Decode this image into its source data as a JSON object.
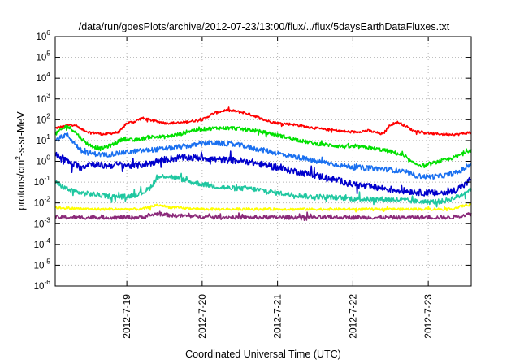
{
  "chart_data": {
    "type": "line",
    "title": "/data/run/goesPlots/archive/2012-07-23/13:00/flux/../flux/5daysEarthDataFluxes.txt",
    "xlabel": "Coordinated Universal Time (UTC)",
    "ylabel": "protons/cm2-s-sr-MeV",
    "y_scale": "log",
    "ylim": [
      1e-06,
      1000000.0
    ],
    "y_ticks": [
      {
        "exp": "-6"
      },
      {
        "exp": "-5"
      },
      {
        "exp": "-4"
      },
      {
        "exp": "-3"
      },
      {
        "exp": "-2"
      },
      {
        "exp": "-1"
      },
      {
        "exp": "0"
      },
      {
        "exp": "1"
      },
      {
        "exp": "2"
      },
      {
        "exp": "3"
      },
      {
        "exp": "4"
      },
      {
        "exp": "5"
      },
      {
        "exp": "6"
      }
    ],
    "x_ticks": [
      "2012-7-19",
      "2012-7-20",
      "2012-7-21",
      "2012-7-22",
      "2012-7-23"
    ],
    "xlim_days": [
      -0.95,
      4.57
    ],
    "grid": true,
    "series": [
      {
        "color": "#ff0000",
        "noise": 0.06,
        "points": [
          [
            -0.95,
            40
          ],
          [
            -0.8,
            50
          ],
          [
            -0.7,
            60
          ],
          [
            -0.6,
            35
          ],
          [
            -0.5,
            25
          ],
          [
            -0.3,
            20
          ],
          [
            -0.1,
            25
          ],
          [
            0,
            70
          ],
          [
            0.1,
            80
          ],
          [
            0.2,
            120
          ],
          [
            0.35,
            90
          ],
          [
            0.5,
            70
          ],
          [
            0.7,
            70
          ],
          [
            0.9,
            90
          ],
          [
            1.0,
            100
          ],
          [
            1.15,
            200
          ],
          [
            1.3,
            280
          ],
          [
            1.4,
            270
          ],
          [
            1.55,
            220
          ],
          [
            1.7,
            150
          ],
          [
            1.85,
            90
          ],
          [
            2.0,
            70
          ],
          [
            2.2,
            60
          ],
          [
            2.4,
            45
          ],
          [
            2.6,
            35
          ],
          [
            2.8,
            30
          ],
          [
            3.0,
            25
          ],
          [
            3.2,
            30
          ],
          [
            3.4,
            20
          ],
          [
            3.5,
            60
          ],
          [
            3.6,
            75
          ],
          [
            3.7,
            50
          ],
          [
            3.8,
            30
          ],
          [
            4.0,
            22
          ],
          [
            4.2,
            20
          ],
          [
            4.4,
            20
          ],
          [
            4.57,
            25
          ]
        ]
      },
      {
        "color": "#00e000",
        "noise": 0.09,
        "points": [
          [
            -0.95,
            20
          ],
          [
            -0.8,
            50
          ],
          [
            -0.7,
            30
          ],
          [
            -0.6,
            12
          ],
          [
            -0.5,
            6
          ],
          [
            -0.35,
            4
          ],
          [
            -0.2,
            6
          ],
          [
            -0.05,
            12
          ],
          [
            0.1,
            10
          ],
          [
            0.3,
            15
          ],
          [
            0.5,
            15
          ],
          [
            0.7,
            20
          ],
          [
            0.85,
            30
          ],
          [
            1.0,
            35
          ],
          [
            1.2,
            40
          ],
          [
            1.4,
            40
          ],
          [
            1.55,
            35
          ],
          [
            1.7,
            30
          ],
          [
            1.9,
            22
          ],
          [
            2.1,
            15
          ],
          [
            2.3,
            10
          ],
          [
            2.5,
            7
          ],
          [
            2.7,
            6
          ],
          [
            2.9,
            5
          ],
          [
            3.1,
            5
          ],
          [
            3.3,
            4
          ],
          [
            3.5,
            3
          ],
          [
            3.65,
            2
          ],
          [
            3.8,
            0.8
          ],
          [
            3.95,
            0.6
          ],
          [
            4.1,
            0.9
          ],
          [
            4.25,
            1.2
          ],
          [
            4.4,
            1.8
          ],
          [
            4.5,
            3
          ],
          [
            4.57,
            3.5
          ]
        ]
      },
      {
        "color": "#1a70f0",
        "noise": 0.12,
        "points": [
          [
            -0.95,
            10
          ],
          [
            -0.8,
            20
          ],
          [
            -0.7,
            8
          ],
          [
            -0.6,
            3
          ],
          [
            -0.5,
            2.5
          ],
          [
            -0.3,
            2
          ],
          [
            -0.1,
            2.5
          ],
          [
            0.1,
            3
          ],
          [
            0.3,
            3.5
          ],
          [
            0.5,
            4
          ],
          [
            0.7,
            5
          ],
          [
            0.9,
            6
          ],
          [
            1.1,
            8
          ],
          [
            1.3,
            7
          ],
          [
            1.5,
            6
          ],
          [
            1.7,
            4
          ],
          [
            1.9,
            3
          ],
          [
            2.1,
            2
          ],
          [
            2.3,
            1.5
          ],
          [
            2.5,
            1
          ],
          [
            2.7,
            0.8
          ],
          [
            2.9,
            0.6
          ],
          [
            3.1,
            0.5
          ],
          [
            3.3,
            0.45
          ],
          [
            3.5,
            0.4
          ],
          [
            3.7,
            0.3
          ],
          [
            3.85,
            0.2
          ],
          [
            4.0,
            0.18
          ],
          [
            4.2,
            0.2
          ],
          [
            4.4,
            0.3
          ],
          [
            4.5,
            0.5
          ],
          [
            4.57,
            0.8
          ]
        ]
      },
      {
        "color": "#0000cc",
        "noise": 0.16,
        "points": [
          [
            -0.95,
            2
          ],
          [
            -0.85,
            1.5
          ],
          [
            -0.75,
            0.8
          ],
          [
            -0.6,
            0.5
          ],
          [
            -0.5,
            0.8
          ],
          [
            -0.3,
            0.6
          ],
          [
            -0.1,
            0.7
          ],
          [
            0.1,
            0.6
          ],
          [
            0.3,
            0.8
          ],
          [
            0.5,
            1.2
          ],
          [
            0.7,
            1.5
          ],
          [
            0.85,
            1.5
          ],
          [
            1.0,
            1.5
          ],
          [
            1.2,
            1.2
          ],
          [
            1.4,
            1.1
          ],
          [
            1.6,
            1
          ],
          [
            1.8,
            0.7
          ],
          [
            2.0,
            0.5
          ],
          [
            2.2,
            0.35
          ],
          [
            2.4,
            0.25
          ],
          [
            2.6,
            0.18
          ],
          [
            2.8,
            0.12
          ],
          [
            3.0,
            0.08
          ],
          [
            3.2,
            0.06
          ],
          [
            3.4,
            0.05
          ],
          [
            3.6,
            0.04
          ],
          [
            3.8,
            0.035
          ],
          [
            4.0,
            0.03
          ],
          [
            4.2,
            0.03
          ],
          [
            4.35,
            0.04
          ],
          [
            4.5,
            0.08
          ],
          [
            4.57,
            0.15
          ]
        ]
      },
      {
        "color": "#1fc7a0",
        "noise": 0.12,
        "points": [
          [
            -0.95,
            0.1
          ],
          [
            -0.85,
            0.06
          ],
          [
            -0.75,
            0.04
          ],
          [
            -0.6,
            0.03
          ],
          [
            -0.4,
            0.025
          ],
          [
            -0.2,
            0.02
          ],
          [
            0,
            0.02
          ],
          [
            0.2,
            0.03
          ],
          [
            0.3,
            0.05
          ],
          [
            0.4,
            0.15
          ],
          [
            0.5,
            0.2
          ],
          [
            0.6,
            0.18
          ],
          [
            0.7,
            0.15
          ],
          [
            0.85,
            0.1
          ],
          [
            1.0,
            0.08
          ],
          [
            1.2,
            0.06
          ],
          [
            1.4,
            0.05
          ],
          [
            1.6,
            0.05
          ],
          [
            1.8,
            0.04
          ],
          [
            2.0,
            0.03
          ],
          [
            2.2,
            0.025
          ],
          [
            2.4,
            0.02
          ],
          [
            2.6,
            0.02
          ],
          [
            2.8,
            0.018
          ],
          [
            3.0,
            0.016
          ],
          [
            3.2,
            0.015
          ],
          [
            3.4,
            0.015
          ],
          [
            3.6,
            0.014
          ],
          [
            3.8,
            0.012
          ],
          [
            4.0,
            0.011
          ],
          [
            4.2,
            0.012
          ],
          [
            4.4,
            0.02
          ],
          [
            4.57,
            0.05
          ]
        ]
      },
      {
        "color": "#ffff00",
        "noise": 0.06,
        "points": [
          [
            -0.95,
            0.006
          ],
          [
            -0.5,
            0.005
          ],
          [
            0,
            0.005
          ],
          [
            0.2,
            0.005
          ],
          [
            0.4,
            0.008
          ],
          [
            0.6,
            0.006
          ],
          [
            1.0,
            0.005
          ],
          [
            1.5,
            0.005
          ],
          [
            2.0,
            0.005
          ],
          [
            2.5,
            0.005
          ],
          [
            3.0,
            0.005
          ],
          [
            3.5,
            0.005
          ],
          [
            4.0,
            0.005
          ],
          [
            4.3,
            0.005
          ],
          [
            4.45,
            0.007
          ],
          [
            4.57,
            0.009
          ]
        ]
      },
      {
        "color": "#8b2a7a",
        "noise": 0.09,
        "points": [
          [
            -0.95,
            0.002
          ],
          [
            -0.5,
            0.002
          ],
          [
            0,
            0.002
          ],
          [
            0.2,
            0.002
          ],
          [
            0.4,
            0.003
          ],
          [
            0.6,
            0.0025
          ],
          [
            1.0,
            0.0022
          ],
          [
            1.5,
            0.002
          ],
          [
            2.0,
            0.002
          ],
          [
            2.5,
            0.002
          ],
          [
            3.0,
            0.002
          ],
          [
            3.5,
            0.002
          ],
          [
            4.0,
            0.002
          ],
          [
            4.3,
            0.002
          ],
          [
            4.45,
            0.0025
          ],
          [
            4.57,
            0.003
          ]
        ]
      }
    ]
  }
}
